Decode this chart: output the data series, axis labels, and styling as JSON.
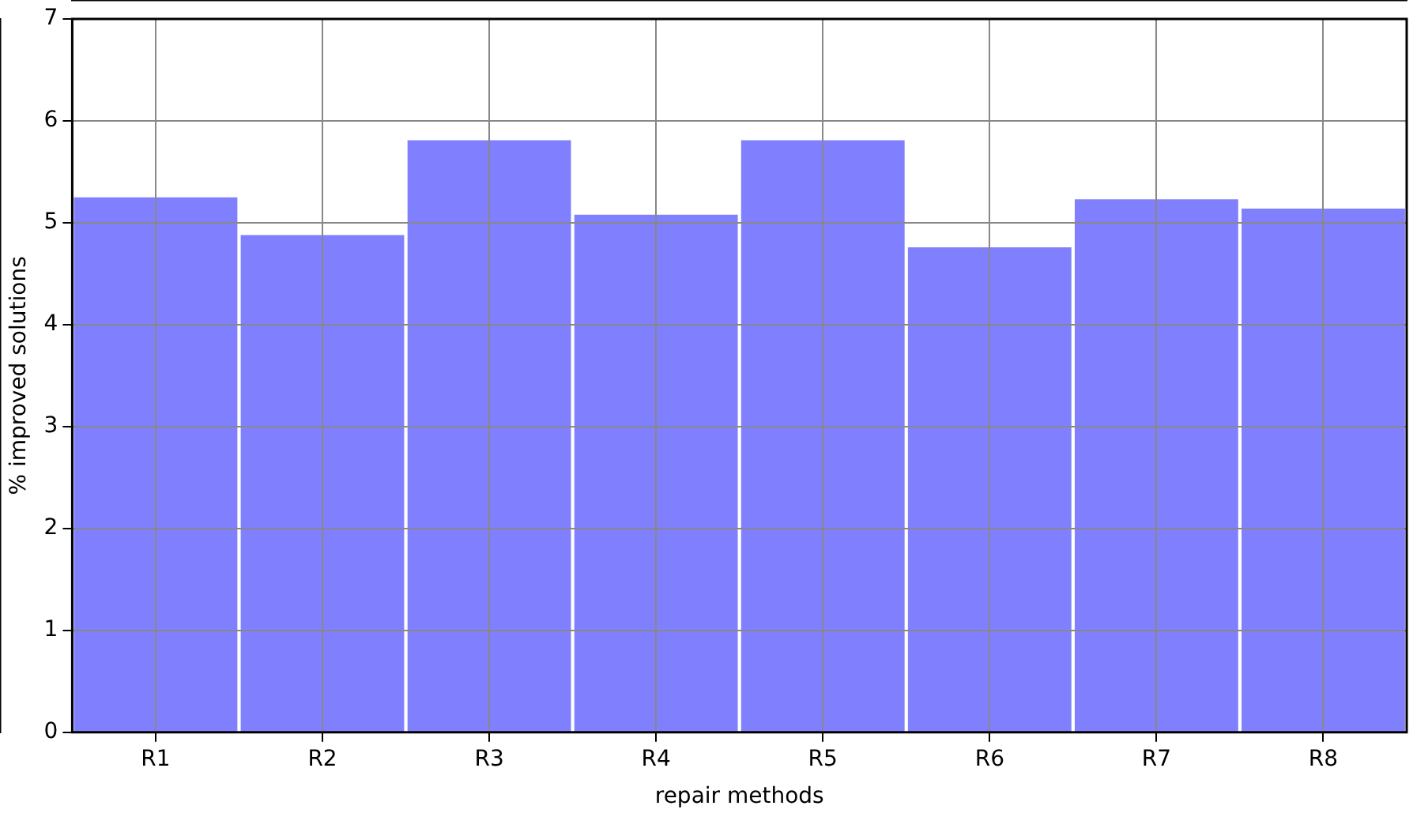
{
  "chart_data": {
    "type": "bar",
    "xlabel": "repair methods",
    "ylabel": "% improved solutions",
    "categories": [
      "R1",
      "R2",
      "R3",
      "R4",
      "R5",
      "R6",
      "R7",
      "R8"
    ],
    "values": [
      5.25,
      4.88,
      5.81,
      5.08,
      5.81,
      4.76,
      5.23,
      5.14
    ],
    "color": "#8080ff",
    "ylim": [
      0,
      7
    ],
    "yticks": [
      0,
      1,
      2,
      3,
      4,
      5,
      6,
      7
    ],
    "grid": true,
    "legend": false
  }
}
